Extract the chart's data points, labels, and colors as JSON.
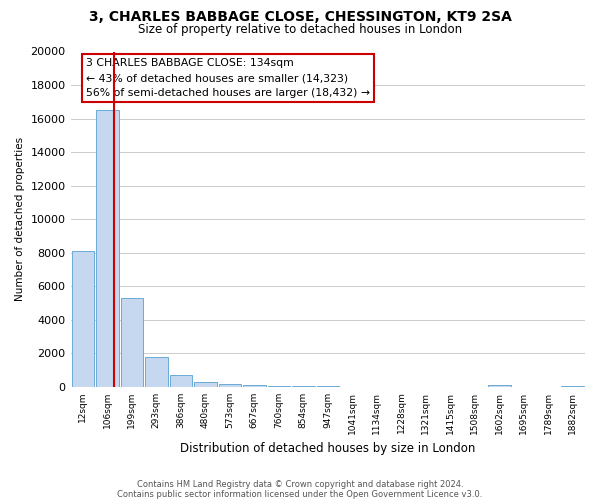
{
  "title": "3, CHARLES BABBAGE CLOSE, CHESSINGTON, KT9 2SA",
  "subtitle": "Size of property relative to detached houses in London",
  "xlabel": "Distribution of detached houses by size in London",
  "ylabel": "Number of detached properties",
  "bar_labels": [
    "12sqm",
    "106sqm",
    "199sqm",
    "293sqm",
    "386sqm",
    "480sqm",
    "573sqm",
    "667sqm",
    "760sqm",
    "854sqm",
    "947sqm",
    "1041sqm",
    "1134sqm",
    "1228sqm",
    "1321sqm",
    "1415sqm",
    "1508sqm",
    "1602sqm",
    "1695sqm",
    "1789sqm",
    "1882sqm"
  ],
  "bar_values": [
    8100,
    16500,
    5300,
    1800,
    700,
    300,
    150,
    100,
    50,
    30,
    20,
    10,
    0,
    0,
    0,
    0,
    0,
    100,
    0,
    0,
    50
  ],
  "bar_color": "#c5d8f0",
  "bar_edge_color": "#6aaad4",
  "annotation_text_line1": "3 CHARLES BABBAGE CLOSE: 134sqm",
  "annotation_text_line2": "← 43% of detached houses are smaller (14,323)",
  "annotation_text_line3": "56% of semi-detached houses are larger (18,432) →",
  "annotation_box_facecolor": "#ffffff",
  "annotation_box_edgecolor": "#cc0000",
  "vline_color": "#cc0000",
  "vline_x": 1.28,
  "ylim": [
    0,
    20000
  ],
  "yticks": [
    0,
    2000,
    4000,
    6000,
    8000,
    10000,
    12000,
    14000,
    16000,
    18000,
    20000
  ],
  "grid_color": "#cccccc",
  "background_color": "#ffffff",
  "footnote1": "Contains HM Land Registry data © Crown copyright and database right 2024.",
  "footnote2": "Contains public sector information licensed under the Open Government Licence v3.0."
}
